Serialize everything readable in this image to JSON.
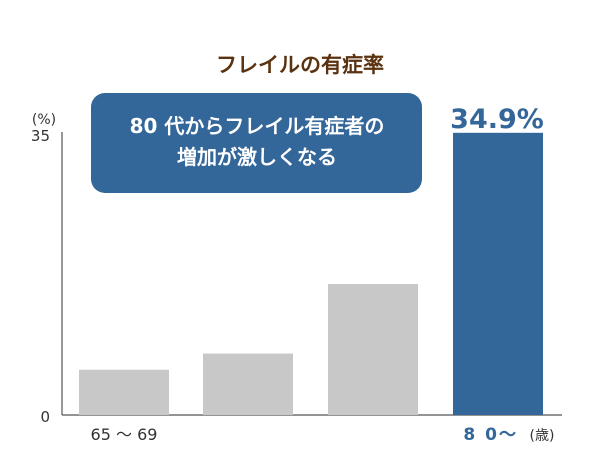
{
  "chart_data": {
    "type": "bar",
    "title": "フレイルの有症率",
    "y_unit": "(%)",
    "x_unit": "(歳)",
    "ylim": [
      0,
      35
    ],
    "y_ticks": [
      "0",
      "35"
    ],
    "categories": [
      "65 〜 69",
      "",
      "",
      "8 0〜"
    ],
    "values": [
      5.6,
      7.6,
      16.2,
      34.9
    ],
    "highlight_label": "34.9%",
    "callout": [
      "80 代からフレイル有症者の",
      "増加が激しくなる"
    ],
    "grid": false,
    "colors": {
      "title": "#5a3210",
      "bar": "#c8c8c8",
      "highlight_bar": "#336699",
      "callout_bg": "#336699",
      "callout_text": "#ffffff",
      "highlight_text": "#336699",
      "axis": "#555555",
      "tick_text": "#333333"
    }
  }
}
